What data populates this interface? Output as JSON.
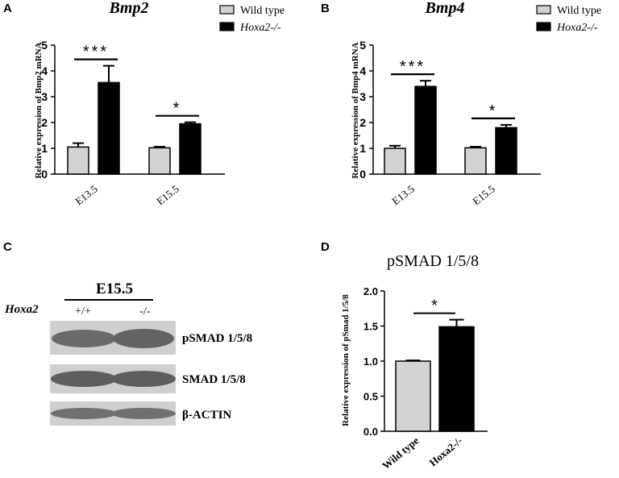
{
  "figure": {
    "colors": {
      "wild_type": "#d3d3d3",
      "mutant": "#000000",
      "blot_bg": "#cfcfcf",
      "band": "#6a6a6a"
    }
  },
  "chart_data": [
    {
      "panel": "A",
      "type": "bar",
      "title": "Bmp2",
      "ylabel": "Relative expression of Bmp2 mRNA",
      "ylim": [
        0,
        5
      ],
      "yticks": [
        "0",
        "1",
        "2",
        "3",
        "4",
        "5"
      ],
      "categories": [
        "E13.5",
        "E15.5"
      ],
      "legend": [
        "Wild type",
        "Hoxa2-/-"
      ],
      "series": [
        {
          "name": "Wild type",
          "values": [
            1.05,
            1.02
          ],
          "errors": [
            0.15,
            0.04
          ]
        },
        {
          "name": "Hoxa2-/-",
          "values": [
            3.55,
            1.95
          ],
          "errors": [
            0.65,
            0.06
          ]
        }
      ],
      "significance": [
        "***",
        "*"
      ]
    },
    {
      "panel": "B",
      "type": "bar",
      "title": "Bmp4",
      "ylabel": "Relative expression of Bmp4 mRNA",
      "ylim": [
        0,
        5
      ],
      "yticks": [
        "0",
        "1",
        "2",
        "3",
        "4",
        "5"
      ],
      "categories": [
        "E13.5",
        "E15.5"
      ],
      "legend": [
        "Wild type",
        "Hoxa2-/-"
      ],
      "series": [
        {
          "name": "Wild type",
          "values": [
            1.0,
            1.02
          ],
          "errors": [
            0.1,
            0.04
          ]
        },
        {
          "name": "Hoxa2-/-",
          "values": [
            3.4,
            1.8
          ],
          "errors": [
            0.22,
            0.11
          ]
        }
      ],
      "significance": [
        "***",
        "*"
      ]
    },
    {
      "panel": "D",
      "type": "bar",
      "title": "pSMAD 1/5/8",
      "ylabel": "Relative expression of pSmad 1/5/8",
      "ylim": [
        0,
        2.0
      ],
      "yticks": [
        "0.0",
        "0.5",
        "1.0",
        "1.5",
        "2.0"
      ],
      "categories": [
        "Wild type",
        "Hoxa2-/-"
      ],
      "values": [
        1.0,
        1.49
      ],
      "errors": [
        0.01,
        0.1
      ],
      "significance": [
        "*"
      ]
    }
  ],
  "blot": {
    "panel": "C",
    "stage": "E15.5",
    "genotype_label": "Hoxa2",
    "lanes": [
      "+/+",
      "-/-"
    ],
    "bands": [
      "pSMAD 1/5/8",
      "SMAD 1/5/8",
      "β-ACTIN"
    ]
  },
  "panel_letters": {
    "a": "A",
    "b": "B",
    "c": "C",
    "d": "D"
  }
}
